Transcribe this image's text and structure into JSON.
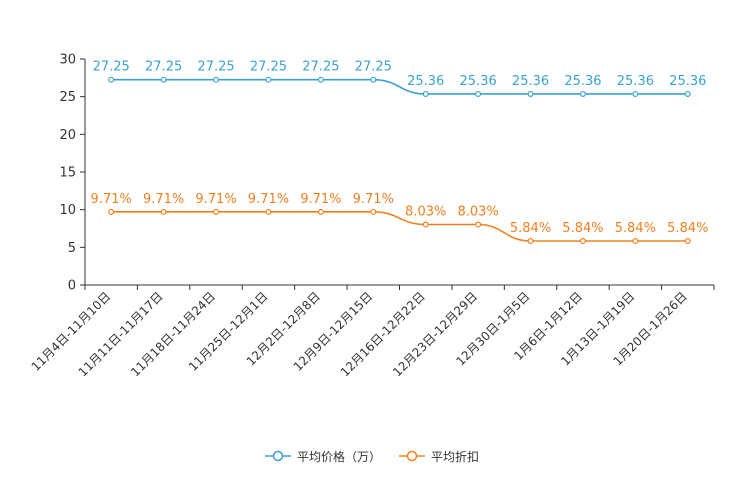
{
  "chart_data": {
    "type": "line",
    "categories": [
      "11月4日-11月10日",
      "11月11日-11月17日",
      "11月18日-11月24日",
      "11月25日-12月1日",
      "12月2日-12月8日",
      "12月9日-12月15日",
      "12月16日-12月22日",
      "12月23日-12月29日",
      "12月30日-1月5日",
      "1月6日-1月12日",
      "1月13日-1月19日",
      "1月20日-1月26日"
    ],
    "ylim": [
      0,
      30
    ],
    "yticks": [
      0,
      5,
      10,
      15,
      20,
      25,
      30
    ],
    "series": [
      {
        "name": "平均价格（万）",
        "color": "#3ba1d1",
        "values": [
          27.25,
          27.25,
          27.25,
          27.25,
          27.25,
          27.25,
          25.36,
          25.36,
          25.36,
          25.36,
          25.36,
          25.36
        ],
        "labels": [
          "27.25",
          "27.25",
          "27.25",
          "27.25",
          "27.25",
          "27.25",
          "25.36",
          "25.36",
          "25.36",
          "25.36",
          "25.36",
          "25.36"
        ]
      },
      {
        "name": "平均折扣",
        "color": "#f0801f",
        "values": [
          9.71,
          9.71,
          9.71,
          9.71,
          9.71,
          9.71,
          8.03,
          8.03,
          5.84,
          5.84,
          5.84,
          5.84
        ],
        "labels": [
          "9.71%",
          "9.71%",
          "9.71%",
          "9.71%",
          "9.71%",
          "9.71%",
          "8.03%",
          "8.03%",
          "5.84%",
          "5.84%",
          "5.84%",
          "5.84%"
        ]
      }
    ],
    "legend_position": "bottom"
  }
}
